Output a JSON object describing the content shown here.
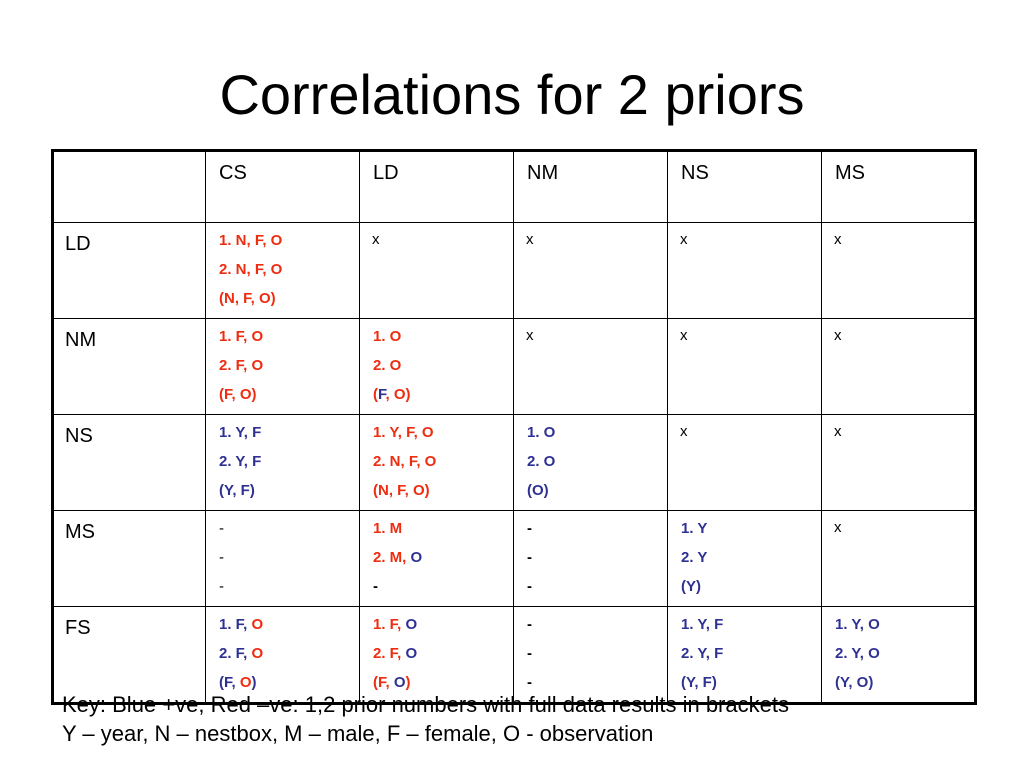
{
  "title": "Correlations for 2 priors",
  "colors": {
    "positive": "#2e3192",
    "negative": "#ee2c10",
    "neutral": "#000000"
  },
  "header": [
    "",
    "CS",
    "LD",
    "NM",
    "NS",
    "MS"
  ],
  "rows": [
    {
      "label": "LD",
      "cells": [
        {
          "lines": [
            [
              [
                "1. N, F, O",
                "negative"
              ]
            ],
            [
              [
                "2. N, F, O",
                "negative"
              ]
            ],
            [
              [
                "(N, F, O)",
                "negative"
              ]
            ]
          ]
        },
        {
          "x": "x"
        },
        {
          "x": "x"
        },
        {
          "x": "x"
        },
        {
          "x": "x"
        }
      ]
    },
    {
      "label": "NM",
      "cells": [
        {
          "lines": [
            [
              [
                "1. F, O",
                "negative"
              ]
            ],
            [
              [
                "2. F, O",
                "negative"
              ]
            ],
            [
              [
                "(F, O)",
                "negative"
              ]
            ]
          ]
        },
        {
          "lines": [
            [
              [
                "1. O",
                "negative"
              ]
            ],
            [
              [
                "2. O",
                "negative"
              ]
            ],
            [
              [
                "(",
                "negative"
              ],
              [
                "F",
                "positive"
              ],
              [
                ", O)",
                "negative"
              ]
            ]
          ]
        },
        {
          "x": "x"
        },
        {
          "x": "x"
        },
        {
          "x": "x"
        }
      ]
    },
    {
      "label": "NS",
      "cells": [
        {
          "lines": [
            [
              [
                "1. Y, F",
                "positive"
              ]
            ],
            [
              [
                "2. Y, F",
                "positive"
              ]
            ],
            [
              [
                "(Y, F)",
                "positive"
              ]
            ]
          ]
        },
        {
          "lines": [
            [
              [
                "1. Y, F, O",
                "negative"
              ]
            ],
            [
              [
                "2. N, F, O",
                "negative"
              ]
            ],
            [
              [
                "(N, F, O)",
                "negative"
              ]
            ]
          ]
        },
        {
          "lines": [
            [
              [
                "1. O",
                "positive"
              ]
            ],
            [
              [
                "2. O",
                "positive"
              ]
            ],
            [
              [
                "(O)",
                "positive"
              ]
            ]
          ]
        },
        {
          "x": "x"
        },
        {
          "x": "x"
        }
      ]
    },
    {
      "label": "MS",
      "cells": [
        {
          "lines": [
            [
              [
                "-",
                "dash"
              ]
            ],
            [
              [
                "-",
                "dash"
              ]
            ],
            [
              [
                "-",
                "dash"
              ]
            ]
          ]
        },
        {
          "lines": [
            [
              [
                "1. M",
                "negative"
              ]
            ],
            [
              [
                "2. M, ",
                "negative"
              ],
              [
                "O",
                "positive"
              ]
            ],
            [
              [
                "-",
                "neutral"
              ]
            ]
          ]
        },
        {
          "lines": [
            [
              [
                "-",
                "neutral"
              ]
            ],
            [
              [
                "-",
                "neutral"
              ]
            ],
            [
              [
                "-",
                "neutral"
              ]
            ]
          ]
        },
        {
          "lines": [
            [
              [
                "1. Y",
                "positive"
              ]
            ],
            [
              [
                "2. Y",
                "positive"
              ]
            ],
            [
              [
                "(Y)",
                "positive"
              ]
            ]
          ]
        },
        {
          "x": "x"
        }
      ]
    },
    {
      "label": "FS",
      "cells": [
        {
          "lines": [
            [
              [
                "1. F, ",
                "positive"
              ],
              [
                "O",
                "negative"
              ]
            ],
            [
              [
                "2. F, ",
                "positive"
              ],
              [
                "O",
                "negative"
              ]
            ],
            [
              [
                "(F, ",
                "positive"
              ],
              [
                "O",
                "negative"
              ],
              [
                ")",
                "positive"
              ]
            ]
          ]
        },
        {
          "lines": [
            [
              [
                "1. F, ",
                "negative"
              ],
              [
                "O",
                "positive"
              ]
            ],
            [
              [
                "2. F, ",
                "negative"
              ],
              [
                "O",
                "positive"
              ]
            ],
            [
              [
                "(F, ",
                "negative"
              ],
              [
                "O",
                "positive"
              ],
              [
                ")",
                "negative"
              ]
            ]
          ]
        },
        {
          "lines": [
            [
              [
                "-",
                "neutral"
              ]
            ],
            [
              [
                "-",
                "neutral"
              ]
            ],
            [
              [
                "-",
                "neutral"
              ]
            ]
          ]
        },
        {
          "lines": [
            [
              [
                "1. Y, F",
                "positive"
              ]
            ],
            [
              [
                "2. Y, F",
                "positive"
              ]
            ],
            [
              [
                "(Y, F)",
                "positive"
              ]
            ]
          ]
        },
        {
          "lines": [
            [
              [
                "1. Y, O",
                "positive"
              ]
            ],
            [
              [
                "2. Y, O",
                "positive"
              ]
            ],
            [
              [
                "(Y, O)",
                "positive"
              ]
            ]
          ]
        }
      ]
    }
  ],
  "key": {
    "line1": "Key: Blue +ve, Red –ve:  1,2 prior numbers with full data results in brackets",
    "line2": "Y – year, N – nestbox, M – male, F – female, O - observation"
  }
}
